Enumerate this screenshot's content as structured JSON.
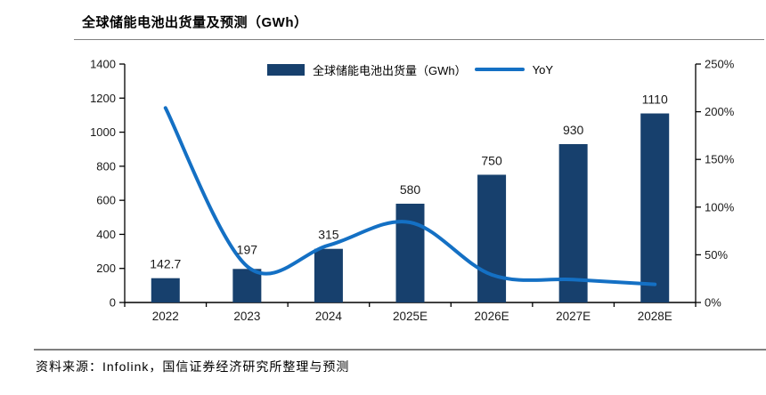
{
  "header": {
    "title": "全球储能电池出货量及预测（GWh）"
  },
  "footer": {
    "source": "资料来源：Infolink，国信证券经济研究所整理与预测"
  },
  "colors": {
    "bar": "#17406D",
    "line": "#1470C4",
    "axis": "#000000",
    "tick_text": "#1a1a1a",
    "rule": "#808080",
    "background": "#ffffff"
  },
  "legend": {
    "items": [
      {
        "kind": "bar-swatch",
        "label": "全球储能电池出货量（GWh）"
      },
      {
        "kind": "line-sample",
        "label": "YoY"
      }
    ]
  },
  "chart_data": {
    "type": "bar",
    "title": "全球储能电池出货量及预测（GWh）",
    "categories": [
      "2022",
      "2023",
      "2024",
      "2025E",
      "2026E",
      "2027E",
      "2028E"
    ],
    "series": [
      {
        "name": "全球储能电池出货量（GWh）",
        "type": "bar",
        "axis": "left",
        "values": [
          142.7,
          197,
          315,
          580,
          750,
          930,
          1110
        ],
        "data_labels": [
          "142.7",
          "197",
          "315",
          "580",
          "750",
          "930",
          "1110"
        ]
      },
      {
        "name": "YoY",
        "type": "line",
        "axis": "right",
        "values_percent": [
          204,
          38,
          60,
          84,
          29,
          24,
          19
        ]
      }
    ],
    "left_axis": {
      "min": 0,
      "max": 1400,
      "step": 200,
      "tick_labels": [
        "0",
        "200",
        "400",
        "600",
        "800",
        "1000",
        "1200",
        "1400"
      ]
    },
    "right_axis": {
      "min": 0,
      "max": 250,
      "step": 50,
      "tick_labels": [
        "0%",
        "50%",
        "100%",
        "150%",
        "200%",
        "250%"
      ]
    },
    "grid": false,
    "legend_position": "top-center"
  }
}
